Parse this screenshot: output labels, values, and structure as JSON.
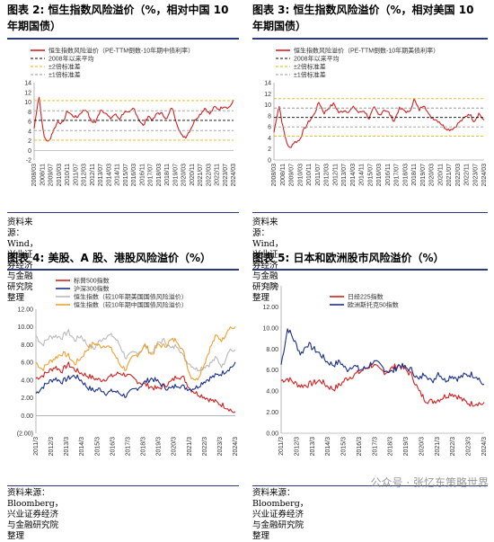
{
  "panels": [
    {
      "id": "p2",
      "label": "图表 2:",
      "title": "恒生指数风险溢价（%，相对中国 10 年期国债）",
      "source": "资料来源：Wind，兴业证券经济与金融研究院整理"
    },
    {
      "id": "p3",
      "label": "图表 3:",
      "title": "恒生指数风险溢价（%，相对美国 10 年期国债）",
      "source": "资料来源：Wind，兴业证券经济与金融研究院整理"
    },
    {
      "id": "p4",
      "label": "图表 4:",
      "title": "美股、A 股、港股风险溢价（%）",
      "source": "资料来源：Bloomberg，兴业证券经济与金融研究院整理"
    },
    {
      "id": "p5",
      "label": "图表 5:",
      "title": "日本和欧洲股市风险溢价（%）",
      "source": "资料来源：Bloomberg，兴业证券经济与金融研究院整理"
    }
  ],
  "watermark": "公众号 · 张忆东策略世界",
  "chart_data": [
    {
      "type": "line",
      "yticks": [
        "-2",
        "0",
        "2",
        "4",
        "6",
        "8",
        "10",
        "12",
        "14"
      ],
      "ylim": [
        -2,
        14
      ],
      "xticks": [
        "2008/03",
        "2008/11",
        "2009/07",
        "2010/03",
        "2010/11",
        "2011/07",
        "2012/03",
        "2012/11",
        "2013/07",
        "2014/03",
        "2014/11",
        "2015/07",
        "2016/03",
        "2016/11",
        "2017/07",
        "2018/03",
        "2018/11",
        "2019/07",
        "2020/03",
        "2020/11",
        "2021/07",
        "2022/03",
        "2022/11",
        "2023/07",
        "2024/03"
      ],
      "series": [
        {
          "name": "恒生指数风险溢价（PE-TTM倒数-10年期中债利率）",
          "color": "#d42020",
          "values": [
            4.5,
            11.5,
            3,
            1.6,
            4,
            6,
            5.5,
            8.2,
            7.2,
            6.8,
            8,
            8.5,
            6,
            5.8,
            8.5,
            7.8,
            6.5,
            7.5,
            6.5,
            8,
            7.6,
            8.8,
            6.5,
            5,
            7.2,
            6.2,
            7.8,
            7.5,
            6.5,
            9,
            5.8,
            3,
            2.8,
            4.5,
            6.5,
            7.5,
            8.8,
            7.5,
            9,
            8.5,
            9.2,
            8.8,
            10.2
          ]
        },
        {
          "name": "2008年以来平均",
          "color": "#000000",
          "values": [
            6.2
          ]
        },
        {
          "name": "±2倍标准差",
          "color": "#f2b000",
          "values": [
            10.3,
            2.1
          ]
        },
        {
          "name": "±1倍标准差",
          "color": "#9a9a9a",
          "values": [
            8.2,
            4.1
          ]
        }
      ]
    },
    {
      "type": "line",
      "yticks": [
        "0",
        "2",
        "4",
        "6",
        "8",
        "10",
        "12",
        "14"
      ],
      "ylim": [
        0,
        14
      ],
      "xticks": [
        "2008/03",
        "2008/11",
        "2009/07",
        "2010/03",
        "2010/11",
        "2011/07",
        "2012/03",
        "2012/11",
        "2013/07",
        "2014/03",
        "2014/11",
        "2015/07",
        "2016/03",
        "2016/11",
        "2017/07",
        "2018/03",
        "2018/11",
        "2019/07",
        "2020/03",
        "2020/11",
        "2021/07",
        "2022/03",
        "2022/11",
        "2023/07",
        "2024/03"
      ],
      "series": [
        {
          "name": "恒生指数风险溢价（PE-TTM倒数-10年期美债利率）",
          "color": "#d42020",
          "values": [
            5,
            10,
            5,
            2,
            3.2,
            3.5,
            5.5,
            7,
            8.2,
            10.5,
            8.5,
            9.5,
            10.2,
            8.5,
            9,
            8.8,
            9.6,
            8.5,
            9,
            7.5,
            9.5,
            8,
            9.2,
            8.5,
            7,
            9.3,
            9,
            8.5,
            11,
            9,
            10.2,
            8,
            7.5,
            7,
            6,
            5.5,
            5.8,
            6.8,
            7.5,
            8.5,
            7,
            8.5,
            7
          ]
        },
        {
          "name": "2008年以来平均",
          "color": "#000000",
          "values": [
            7.7
          ]
        },
        {
          "name": "±2倍标准差",
          "color": "#f2b000",
          "values": [
            11.1,
            4.3
          ]
        },
        {
          "name": "±1倍标准差",
          "color": "#9a9a9a",
          "values": [
            9.4,
            6.0
          ]
        }
      ]
    },
    {
      "type": "line",
      "yticks": [
        "(2.00)",
        "0.00",
        "2.00",
        "4.00",
        "6.00",
        "8.00",
        "10.00",
        "12.00"
      ],
      "ylim": [
        -2,
        12
      ],
      "xticks": [
        "2011/3",
        "2012/3",
        "2013/3",
        "2014/3",
        "2015/3",
        "2016/3",
        "2017/3",
        "2018/3",
        "2019/3",
        "2020/3",
        "2021/3",
        "2022/3",
        "2023/3",
        "2024/3"
      ],
      "series": [
        {
          "name": "标普500指数",
          "color": "#d42020",
          "values": [
            4.2,
            4.5,
            5,
            5.5,
            5,
            5.8,
            5.2,
            4.8,
            4.5,
            4.2,
            4,
            4.2,
            4.5,
            4.8,
            4.6,
            4.2,
            3.8,
            3.5,
            3.2,
            3,
            3.4,
            3.8,
            4.5,
            4.2,
            3,
            2.5,
            2.2,
            1.8,
            1.5,
            1.2,
            0.8,
            0.2
          ]
        },
        {
          "name": "沪深300指数",
          "color": "#1a2f8a",
          "values": [
            2.5,
            3.2,
            3.8,
            4.2,
            3.8,
            4.2,
            4.5,
            4,
            3.2,
            2.8,
            3,
            2.5,
            2.8,
            2.5,
            2.2,
            2.8,
            3.2,
            3.8,
            4.2,
            3.8,
            3.2,
            3,
            3.5,
            3.2,
            3,
            3.2,
            3.8,
            4.2,
            4.5,
            4.8,
            5.3,
            5.8
          ]
        },
        {
          "name": "恒生指数（较10年期美国国债风险溢价）",
          "color": "#b9b9b9",
          "values": [
            9,
            8,
            8.8,
            9,
            8.8,
            9.5,
            8.5,
            9,
            8,
            7.5,
            8.5,
            9,
            9,
            8,
            6.5,
            7,
            7.2,
            7.8,
            7,
            8.2,
            8.5,
            7.5,
            8,
            6.5,
            5.8,
            5.2,
            5.5,
            5.8,
            6.5,
            5.5,
            7.5,
            7.2
          ]
        },
        {
          "name": "恒生指数（较10年期中国国债风险溢价）",
          "color": "#f0a030",
          "values": [
            6,
            5.2,
            6,
            6.5,
            7,
            6.8,
            5.8,
            6.5,
            7.5,
            8.2,
            7.8,
            8,
            7.2,
            5.8,
            5.2,
            6.5,
            7,
            8,
            6.8,
            8,
            7.8,
            8.5,
            8.5,
            7,
            4.5,
            4,
            5.5,
            7.5,
            9,
            8.5,
            10,
            9.8
          ]
        }
      ]
    },
    {
      "type": "line",
      "yticks": [
        "0.00",
        "2.00",
        "4.00",
        "6.00",
        "8.00",
        "10.00",
        "12.00",
        "14.00"
      ],
      "ylim": [
        0,
        14
      ],
      "xticks": [
        "2011/3",
        "2012/3",
        "2013/3",
        "2014/3",
        "2015/3",
        "2016/3",
        "2017/3",
        "2018/3",
        "2019/3",
        "2020/3",
        "2021/3",
        "2022/3",
        "2023/3",
        "2024/3"
      ],
      "series": [
        {
          "name": "日经225指数",
          "color": "#d42020",
          "values": [
            5,
            5.2,
            4.8,
            4.5,
            4.6,
            4.8,
            5,
            4.5,
            4.2,
            4.6,
            5.2,
            5.5,
            5.8,
            6.2,
            6.5,
            6,
            5.8,
            6.2,
            6.5,
            6,
            5.5,
            4,
            3.2,
            3,
            3.2,
            3.5,
            3.8,
            3.5,
            3,
            2.8,
            2.9,
            2.7
          ]
        },
        {
          "name": "欧洲斯托克50指数",
          "color": "#1a2f8a",
          "values": [
            6.5,
            10,
            8.8,
            7.5,
            8.5,
            8,
            7.5,
            6.8,
            6.5,
            6.8,
            6,
            6.5,
            6,
            6.2,
            6.8,
            6.5,
            6,
            5.8,
            6.5,
            6.2,
            6,
            5,
            5.8,
            4.8,
            5.8,
            5,
            5.5,
            5.2,
            5.5,
            5.6,
            5.4,
            4.4
          ]
        }
      ]
    }
  ]
}
